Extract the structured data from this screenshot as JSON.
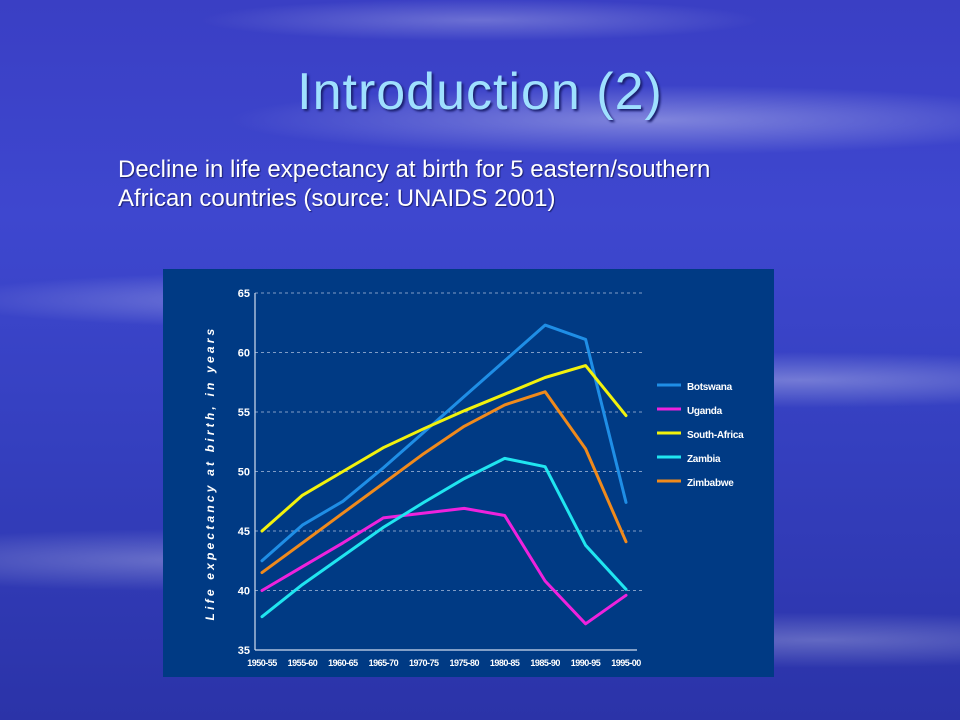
{
  "slide": {
    "title": "Introduction  (2)",
    "subtitle_line1": "Decline in life expectancy at birth for 5 eastern/southern",
    "subtitle_line2": "African countries (source: UNAIDS 2001)"
  },
  "chart_data": {
    "type": "line",
    "title": "",
    "xlabel": "",
    "ylabel": "Life expectancy at birth, in years",
    "ylim": [
      35,
      65
    ],
    "yticks": [
      35,
      40,
      45,
      50,
      55,
      60,
      65
    ],
    "grid": true,
    "legend_position": "right",
    "x": [
      "1950-55",
      "1955-60",
      "1960-65",
      "1965-70",
      "1970-75",
      "1975-80",
      "1980-85",
      "1985-90",
      "1990-95",
      "1995-00"
    ],
    "series": [
      {
        "name": "Botswana",
        "color": "#1f8ee6",
        "values": [
          42.5,
          45.5,
          47.5,
          50.3,
          53.3,
          56.3,
          59.3,
          62.3,
          61.1,
          47.4
        ]
      },
      {
        "name": "Uganda",
        "color": "#ee22dd",
        "values": [
          40.0,
          42.0,
          44.0,
          46.1,
          46.5,
          46.9,
          46.3,
          40.8,
          37.2,
          39.6
        ]
      },
      {
        "name": "South-Africa",
        "color": "#f2f20d",
        "values": [
          45.0,
          48.0,
          50.0,
          52.0,
          53.6,
          55.1,
          56.5,
          57.9,
          58.9,
          54.7
        ]
      },
      {
        "name": "Zambia",
        "color": "#20e5f0",
        "values": [
          37.8,
          40.5,
          42.9,
          45.3,
          47.4,
          49.4,
          51.1,
          50.4,
          43.8,
          40.1
        ]
      },
      {
        "name": "Zimbabwe",
        "color": "#f08a1c",
        "values": [
          41.5,
          44.0,
          46.5,
          49.0,
          51.5,
          53.8,
          55.6,
          56.7,
          51.9,
          44.1
        ]
      }
    ]
  }
}
